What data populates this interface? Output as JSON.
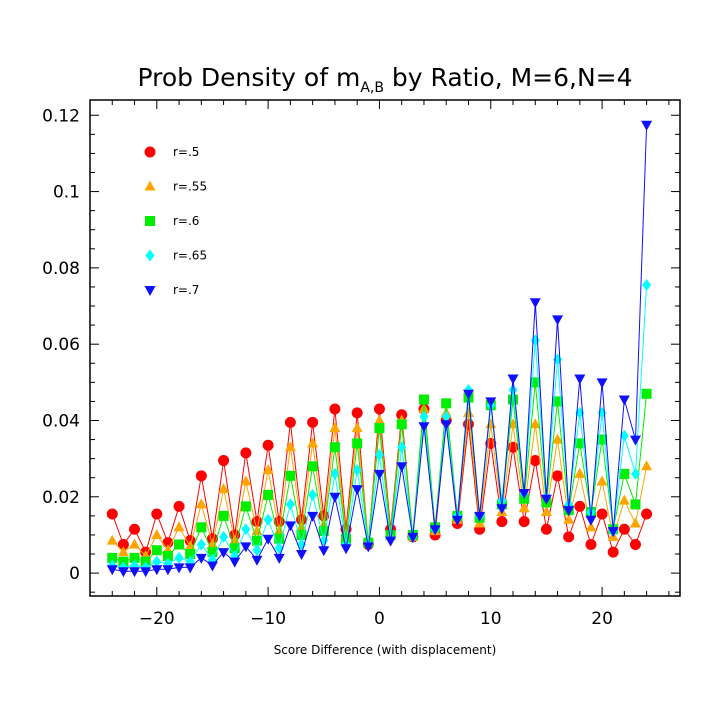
{
  "chart_data": {
    "type": "line",
    "title": "Prob Density of m",
    "title_subscript": "A,B",
    "title_suffix": " by Ratio, M=6,N=4",
    "xlabel": "Score Difference (with displacement)",
    "ylabel": "",
    "xlim": [
      -26,
      27
    ],
    "ylim": [
      -0.006,
      0.124
    ],
    "xticks": [
      -20,
      -10,
      0,
      10,
      20
    ],
    "yticks": [
      0,
      0.02,
      0.04,
      0.06,
      0.08,
      0.1,
      0.12
    ],
    "ytick_labels": [
      "0",
      "0.02",
      "0.04",
      "0.06",
      "0.08",
      "0.1",
      "0.12"
    ],
    "grid": false,
    "legend_position": "top-left",
    "x": [
      -24,
      -23,
      -22,
      -21,
      -20,
      -19,
      -18,
      -17,
      -16,
      -15,
      -14,
      -13,
      -12,
      -11,
      -10,
      -9,
      -8,
      -7,
      -6,
      -5,
      -4,
      -3,
      -2,
      -1,
      0,
      1,
      2,
      3,
      4,
      5,
      6,
      7,
      8,
      9,
      10,
      11,
      12,
      13,
      14,
      15,
      16,
      17,
      18,
      19,
      20,
      21,
      22,
      23,
      24
    ],
    "series": [
      {
        "name": "r=.5",
        "color": "#ff0000",
        "marker": "circle",
        "values": [
          0.0155,
          0.0075,
          0.0115,
          0.0055,
          0.0155,
          0.008,
          0.0175,
          0.0085,
          0.0255,
          0.009,
          0.0295,
          0.01,
          0.0315,
          0.0135,
          0.0335,
          0.0135,
          0.0395,
          0.014,
          0.0395,
          0.015,
          0.043,
          0.0115,
          0.042,
          0.0075,
          0.043,
          0.0115,
          0.0415,
          0.0095,
          0.043,
          0.01,
          0.04,
          0.013,
          0.039,
          0.0115,
          0.034,
          0.0135,
          0.033,
          0.0135,
          0.0295,
          0.0115,
          0.0255,
          0.0095,
          0.0175,
          0.0075,
          0.0155,
          0.0055,
          0.0115,
          0.0075,
          0.0155
        ]
      },
      {
        "name": "r=.55",
        "color": "#ffa500",
        "marker": "triangle-up",
        "values": [
          0.0085,
          0.0055,
          0.0075,
          0.0045,
          0.01,
          0.006,
          0.012,
          0.007,
          0.018,
          0.0075,
          0.022,
          0.0085,
          0.024,
          0.011,
          0.027,
          0.011,
          0.033,
          0.012,
          0.034,
          0.0125,
          0.038,
          0.01,
          0.038,
          0.008,
          0.04,
          0.0105,
          0.04,
          0.0095,
          0.043,
          0.011,
          0.042,
          0.014,
          0.042,
          0.013,
          0.039,
          0.016,
          0.039,
          0.017,
          0.039,
          0.016,
          0.035,
          0.014,
          0.026,
          0.012,
          0.024,
          0.0095,
          0.019,
          0.013,
          0.028
        ]
      },
      {
        "name": "r=.6",
        "color": "#00ee00",
        "marker": "square",
        "values": [
          0.004,
          0.003,
          0.004,
          0.003,
          0.006,
          0.0045,
          0.0075,
          0.005,
          0.012,
          0.0055,
          0.015,
          0.0065,
          0.0175,
          0.0085,
          0.0205,
          0.009,
          0.0255,
          0.01,
          0.028,
          0.011,
          0.033,
          0.009,
          0.034,
          0.008,
          0.038,
          0.01,
          0.039,
          0.01,
          0.0455,
          0.012,
          0.0445,
          0.015,
          0.046,
          0.0145,
          0.044,
          0.018,
          0.0455,
          0.0195,
          0.05,
          0.0185,
          0.045,
          0.0165,
          0.034,
          0.016,
          0.035,
          0.0115,
          0.026,
          0.018,
          0.047
        ]
      },
      {
        "name": "r=.65",
        "color": "#00ffff",
        "marker": "diamond",
        "values": [
          0.002,
          0.0015,
          0.002,
          0.0015,
          0.003,
          0.0025,
          0.004,
          0.003,
          0.0075,
          0.0035,
          0.0095,
          0.0045,
          0.0115,
          0.006,
          0.014,
          0.0065,
          0.018,
          0.0075,
          0.0205,
          0.0085,
          0.026,
          0.0075,
          0.027,
          0.0075,
          0.031,
          0.009,
          0.033,
          0.0095,
          0.041,
          0.0115,
          0.041,
          0.015,
          0.048,
          0.015,
          0.044,
          0.019,
          0.048,
          0.021,
          0.061,
          0.02,
          0.056,
          0.018,
          0.042,
          0.016,
          0.042,
          0.011,
          0.036,
          0.026,
          0.0755
        ]
      },
      {
        "name": "r=.7",
        "color": "#1010ff",
        "marker": "triangle-down",
        "values": [
          0.001,
          0.0005,
          0.0005,
          0.0005,
          0.001,
          0.001,
          0.0015,
          0.0015,
          0.004,
          0.002,
          0.0055,
          0.003,
          0.007,
          0.0035,
          0.009,
          0.004,
          0.0125,
          0.005,
          0.015,
          0.006,
          0.02,
          0.0065,
          0.022,
          0.007,
          0.026,
          0.0085,
          0.028,
          0.0095,
          0.0385,
          0.0115,
          0.039,
          0.014,
          0.047,
          0.015,
          0.045,
          0.017,
          0.051,
          0.021,
          0.071,
          0.0195,
          0.0665,
          0.0165,
          0.051,
          0.014,
          0.05,
          0.011,
          0.0455,
          0.035,
          0.1175
        ]
      }
    ]
  }
}
